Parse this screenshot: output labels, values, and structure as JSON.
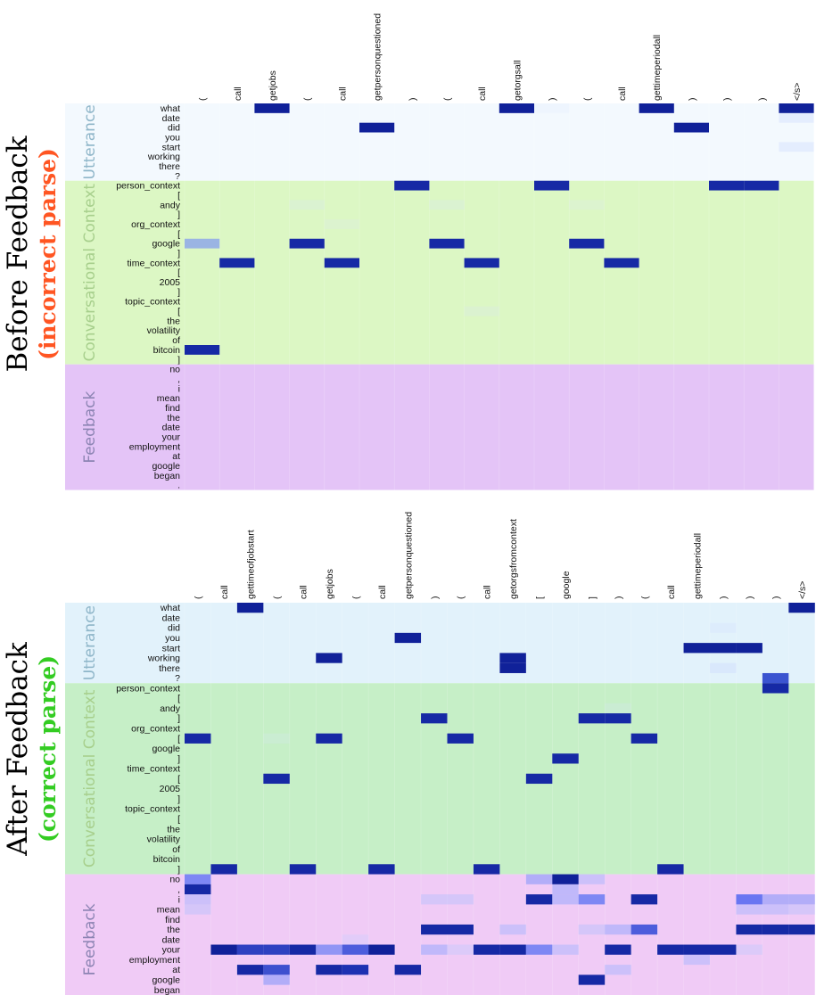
{
  "colors": {
    "before_accent": "#ff5522",
    "after_accent": "#33cc22",
    "utterance_bg": "#e2f2fb",
    "context_bg_before": "#dcf7c4",
    "context_bg_after": "#c6efc7",
    "feedback_bg": "#f3ccf7",
    "label_utterance": "#8fb6c9",
    "label_context": "#a7cf8c",
    "label_feedback": "#8c84b3",
    "cell_strong": "#0a1f8f"
  },
  "chart_data": [
    {
      "type": "heatmap",
      "title": "Before Feedback",
      "subtitle": "(incorrect parse)",
      "sections": [
        {
          "name": "Utterance",
          "rows": [
            "what",
            "date",
            "did",
            "you",
            "start",
            "working",
            "there",
            "?"
          ]
        },
        {
          "name": "Conversational Context",
          "rows": [
            "person_context",
            "[",
            "andy",
            "]",
            "org_context",
            "[",
            "google",
            "]",
            "time_context",
            "[",
            "2005",
            "]",
            "topic_context",
            "[",
            "the",
            "volatility",
            "of",
            "bitcoin",
            "]"
          ]
        },
        {
          "name": "Feedback",
          "rows": [
            "no",
            ",",
            "i",
            "mean",
            "find",
            "the",
            "date",
            "your",
            "employment",
            "at",
            "google",
            "began",
            "."
          ]
        }
      ],
      "columns": [
        "(",
        "call",
        "getjobs",
        "(",
        "call",
        "getpersonquestioned",
        ")",
        "(",
        "call",
        "getorgsall",
        ")",
        "(",
        "call",
        "gettimeperiodall",
        ")",
        ")",
        ")",
        "</s>"
      ],
      "cells": [
        [
          0,
          2,
          0.95
        ],
        [
          0,
          9,
          0.95
        ],
        [
          0,
          13,
          0.95
        ],
        [
          0,
          17,
          0.95
        ],
        [
          1,
          17,
          0.15
        ],
        [
          2,
          5,
          0.95
        ],
        [
          2,
          14,
          0.95
        ],
        [
          4,
          17,
          0.15
        ],
        [
          8,
          10,
          0.15
        ],
        [
          0,
          10,
          0.05
        ],
        [
          8,
          6,
          0.9
        ],
        [
          8,
          10,
          0.9
        ],
        [
          8,
          15,
          0.9
        ],
        [
          8,
          16,
          0.9
        ],
        [
          10,
          3,
          0.08
        ],
        [
          10,
          7,
          0.08
        ],
        [
          10,
          11,
          0.05
        ],
        [
          12,
          4,
          0.05
        ],
        [
          14,
          0,
          0.45
        ],
        [
          14,
          3,
          0.9
        ],
        [
          14,
          7,
          0.9
        ],
        [
          14,
          11,
          0.9
        ],
        [
          16,
          1,
          0.9
        ],
        [
          16,
          4,
          0.9
        ],
        [
          16,
          8,
          0.9
        ],
        [
          16,
          12,
          0.9
        ],
        [
          21,
          8,
          0.06
        ],
        [
          25,
          0,
          0.9
        ]
      ]
    },
    {
      "type": "heatmap",
      "title": "After Feedback",
      "subtitle": "(correct parse)",
      "sections": [
        {
          "name": "Utterance",
          "rows": [
            "what",
            "date",
            "did",
            "you",
            "start",
            "working",
            "there",
            "?"
          ]
        },
        {
          "name": "Conversational Context",
          "rows": [
            "person_context",
            "[",
            "andy",
            "]",
            "org_context",
            "[",
            "google",
            "]",
            "time_context",
            "[",
            "2005",
            "]",
            "topic_context",
            "[",
            "the",
            "volatility",
            "of",
            "bitcoin",
            "]"
          ]
        },
        {
          "name": "Feedback",
          "rows": [
            "no",
            ",",
            "i",
            "mean",
            "find",
            "the",
            "date",
            "your",
            "employment",
            "at",
            "google",
            "began",
            "."
          ]
        }
      ],
      "columns": [
        "(",
        "call",
        "gettimeofjobstart",
        "(",
        "call",
        "getjobs",
        "(",
        "call",
        "getpersonquestioned",
        ")",
        "(",
        "call",
        "getorgsfromcontext",
        "[",
        "google",
        "]",
        ")",
        "(",
        "call",
        "gettimeperiodall",
        ")",
        ")",
        ")",
        "</s>"
      ],
      "cells": [
        [
          0,
          2,
          0.95
        ],
        [
          0,
          23,
          0.95
        ],
        [
          2,
          20,
          0.1
        ],
        [
          3,
          8,
          0.95
        ],
        [
          4,
          19,
          0.95
        ],
        [
          4,
          20,
          0.95
        ],
        [
          4,
          21,
          0.95
        ],
        [
          5,
          5,
          0.95
        ],
        [
          5,
          12,
          0.95
        ],
        [
          6,
          12,
          0.95
        ],
        [
          6,
          20,
          0.15
        ],
        [
          7,
          22,
          0.75
        ],
        [
          8,
          22,
          0.9
        ],
        [
          10,
          16,
          0.06
        ],
        [
          11,
          9,
          0.9
        ],
        [
          11,
          15,
          0.9
        ],
        [
          11,
          16,
          0.9
        ],
        [
          13,
          0,
          0.9
        ],
        [
          13,
          5,
          0.9
        ],
        [
          13,
          10,
          0.9
        ],
        [
          13,
          17,
          0.9
        ],
        [
          13,
          3,
          0.05
        ],
        [
          15,
          14,
          0.9
        ],
        [
          17,
          3,
          0.9
        ],
        [
          17,
          13,
          0.9
        ],
        [
          26,
          1,
          0.9
        ],
        [
          26,
          4,
          0.9
        ],
        [
          26,
          7,
          0.9
        ],
        [
          26,
          11,
          0.9
        ],
        [
          26,
          18,
          0.9
        ],
        [
          27,
          0,
          0.55
        ],
        [
          27,
          13,
          0.4
        ],
        [
          27,
          14,
          0.95
        ],
        [
          27,
          15,
          0.3
        ],
        [
          28,
          0,
          0.9
        ],
        [
          28,
          14,
          0.35
        ],
        [
          29,
          0,
          0.3
        ],
        [
          29,
          9,
          0.25
        ],
        [
          29,
          10,
          0.25
        ],
        [
          29,
          13,
          0.9
        ],
        [
          29,
          14,
          0.35
        ],
        [
          29,
          15,
          0.55
        ],
        [
          29,
          17,
          0.9
        ],
        [
          29,
          21,
          0.6
        ],
        [
          29,
          22,
          0.4
        ],
        [
          29,
          23,
          0.4
        ],
        [
          30,
          0,
          0.25
        ],
        [
          30,
          21,
          0.3
        ],
        [
          30,
          22,
          0.3
        ],
        [
          30,
          23,
          0.25
        ],
        [
          32,
          9,
          0.9
        ],
        [
          32,
          10,
          0.9
        ],
        [
          32,
          12,
          0.3
        ],
        [
          32,
          15,
          0.25
        ],
        [
          32,
          16,
          0.35
        ],
        [
          32,
          17,
          0.7
        ],
        [
          32,
          21,
          0.9
        ],
        [
          32,
          22,
          0.9
        ],
        [
          32,
          23,
          0.9
        ],
        [
          33,
          6,
          0.15
        ],
        [
          34,
          1,
          0.95
        ],
        [
          34,
          2,
          0.8
        ],
        [
          34,
          3,
          0.8
        ],
        [
          34,
          4,
          0.9
        ],
        [
          34,
          5,
          0.5
        ],
        [
          34,
          6,
          0.7
        ],
        [
          34,
          7,
          0.95
        ],
        [
          34,
          9,
          0.35
        ],
        [
          34,
          10,
          0.2
        ],
        [
          34,
          11,
          0.9
        ],
        [
          34,
          12,
          0.9
        ],
        [
          34,
          13,
          0.55
        ],
        [
          34,
          14,
          0.3
        ],
        [
          34,
          16,
          0.9
        ],
        [
          34,
          18,
          0.9
        ],
        [
          34,
          19,
          0.9
        ],
        [
          34,
          20,
          0.9
        ],
        [
          34,
          21,
          0.2
        ],
        [
          35,
          19,
          0.3
        ],
        [
          36,
          2,
          0.9
        ],
        [
          36,
          3,
          0.75
        ],
        [
          36,
          5,
          0.9
        ],
        [
          36,
          6,
          0.85
        ],
        [
          36,
          8,
          0.9
        ],
        [
          36,
          16,
          0.3
        ],
        [
          37,
          3,
          0.4
        ],
        [
          37,
          15,
          0.9
        ]
      ]
    }
  ]
}
